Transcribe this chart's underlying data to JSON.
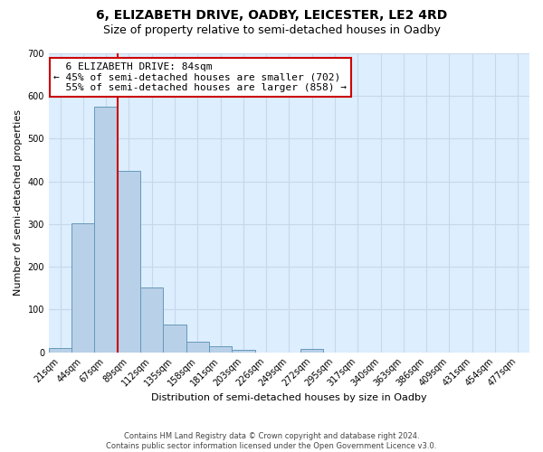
{
  "title": "6, ELIZABETH DRIVE, OADBY, LEICESTER, LE2 4RD",
  "subtitle": "Size of property relative to semi-detached houses in Oadby",
  "xlabel": "Distribution of semi-detached houses by size in Oadby",
  "ylabel": "Number of semi-detached properties",
  "bins": [
    "21sqm",
    "44sqm",
    "67sqm",
    "89sqm",
    "112sqm",
    "135sqm",
    "158sqm",
    "181sqm",
    "203sqm",
    "226sqm",
    "249sqm",
    "272sqm",
    "295sqm",
    "317sqm",
    "340sqm",
    "363sqm",
    "386sqm",
    "409sqm",
    "431sqm",
    "454sqm",
    "477sqm"
  ],
  "values": [
    10,
    302,
    575,
    425,
    152,
    65,
    25,
    13,
    5,
    0,
    0,
    8,
    0,
    0,
    0,
    0,
    0,
    0,
    0,
    0,
    0
  ],
  "bar_color": "#b8d0e8",
  "bar_edge_color": "#6699bb",
  "vline_color": "#cc0000",
  "annotation_box_color": "#ffffff",
  "annotation_box_edge": "#cc0000",
  "property_label": "6 ELIZABETH DRIVE: 84sqm",
  "pct_smaller": 45,
  "count_smaller": 702,
  "pct_larger": 55,
  "count_larger": 858,
  "ylim": [
    0,
    700
  ],
  "yticks": [
    0,
    100,
    200,
    300,
    400,
    500,
    600,
    700
  ],
  "grid_color": "#c8d8ea",
  "bg_color": "#ddeeff",
  "footnote": "Contains HM Land Registry data © Crown copyright and database right 2024.\nContains public sector information licensed under the Open Government Licence v3.0.",
  "title_fontsize": 10,
  "subtitle_fontsize": 9,
  "axis_label_fontsize": 8,
  "tick_fontsize": 7,
  "annotation_fontsize": 8,
  "footnote_fontsize": 6
}
